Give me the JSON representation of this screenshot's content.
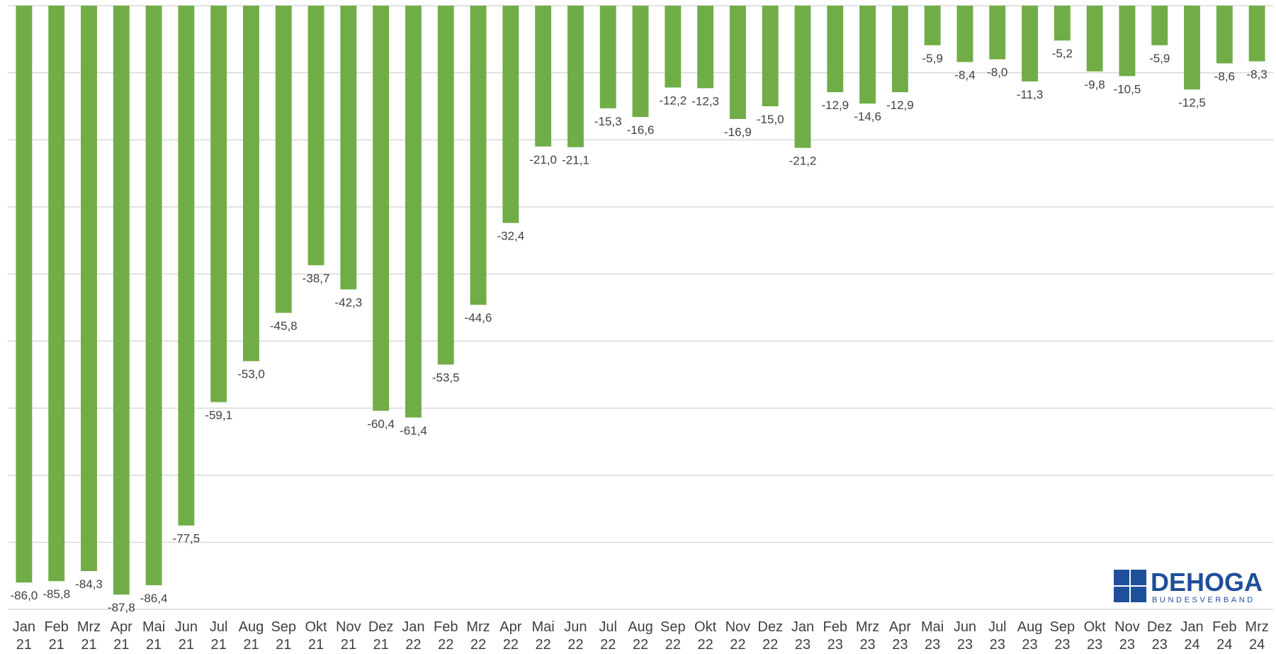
{
  "chart_data": {
    "type": "bar",
    "categories": [
      "Jan 21",
      "Feb 21",
      "Mrz 21",
      "Apr 21",
      "Mai 21",
      "Jun 21",
      "Jul 21",
      "Aug 21",
      "Sep 21",
      "Okt 21",
      "Nov 21",
      "Dez 21",
      "Jan 22",
      "Feb 22",
      "Mrz 22",
      "Apr 22",
      "Mai 22",
      "Jun 22",
      "Jul 22",
      "Aug 22",
      "Sep 22",
      "Okt 22",
      "Nov 22",
      "Dez 22",
      "Jan 23",
      "Feb 23",
      "Mrz 23",
      "Apr 23",
      "Mai 23",
      "Jun 23",
      "Jul 23",
      "Aug 23",
      "Sep 23",
      "Okt 23",
      "Nov 23",
      "Dez 23",
      "Jan 24",
      "Feb 24",
      "Mrz 24"
    ],
    "values": [
      -86.0,
      -85.8,
      -84.3,
      -87.8,
      -86.4,
      -77.5,
      -59.1,
      -53.0,
      -45.8,
      -38.7,
      -42.3,
      -60.4,
      -61.4,
      -53.5,
      -44.6,
      -32.4,
      -21.0,
      -21.1,
      -15.3,
      -16.6,
      -12.2,
      -12.3,
      -16.9,
      -15.0,
      -21.2,
      -12.9,
      -14.6,
      -12.9,
      -5.9,
      -8.4,
      -8.0,
      -11.3,
      -5.2,
      -9.8,
      -10.5,
      -5.9,
      -12.5,
      -8.6,
      -8.3
    ],
    "value_labels": [
      "-86,0",
      "-85,8",
      "-84,3",
      "-87,8",
      "-86,4",
      "-77,5",
      "-59,1",
      "-53,0",
      "-45,8",
      "-38,7",
      "-42,3",
      "-60,4",
      "-61,4",
      "-53,5",
      "-44,6",
      "-32,4",
      "-21,0",
      "-21,1",
      "-15,3",
      "-16,6",
      "-12,2",
      "-12,3",
      "-16,9",
      "-15,0",
      "-21,2",
      "-12,9",
      "-14,6",
      "-12,9",
      "-5,9",
      "-8,4",
      "-8,0",
      "-11,3",
      "-5,2",
      "-9,8",
      "-10,5",
      "-5,9",
      "-12,5",
      "-8,6",
      "-8,3"
    ],
    "color": "#70ad47",
    "ylim": [
      -90,
      0
    ],
    "yticks": [
      0,
      -10,
      -20,
      -30,
      -40,
      -50,
      -60,
      -70,
      -80,
      -90
    ],
    "grid": true
  },
  "logo": {
    "name": "DEHOGA",
    "sub": "BUNDESVERBAND"
  }
}
